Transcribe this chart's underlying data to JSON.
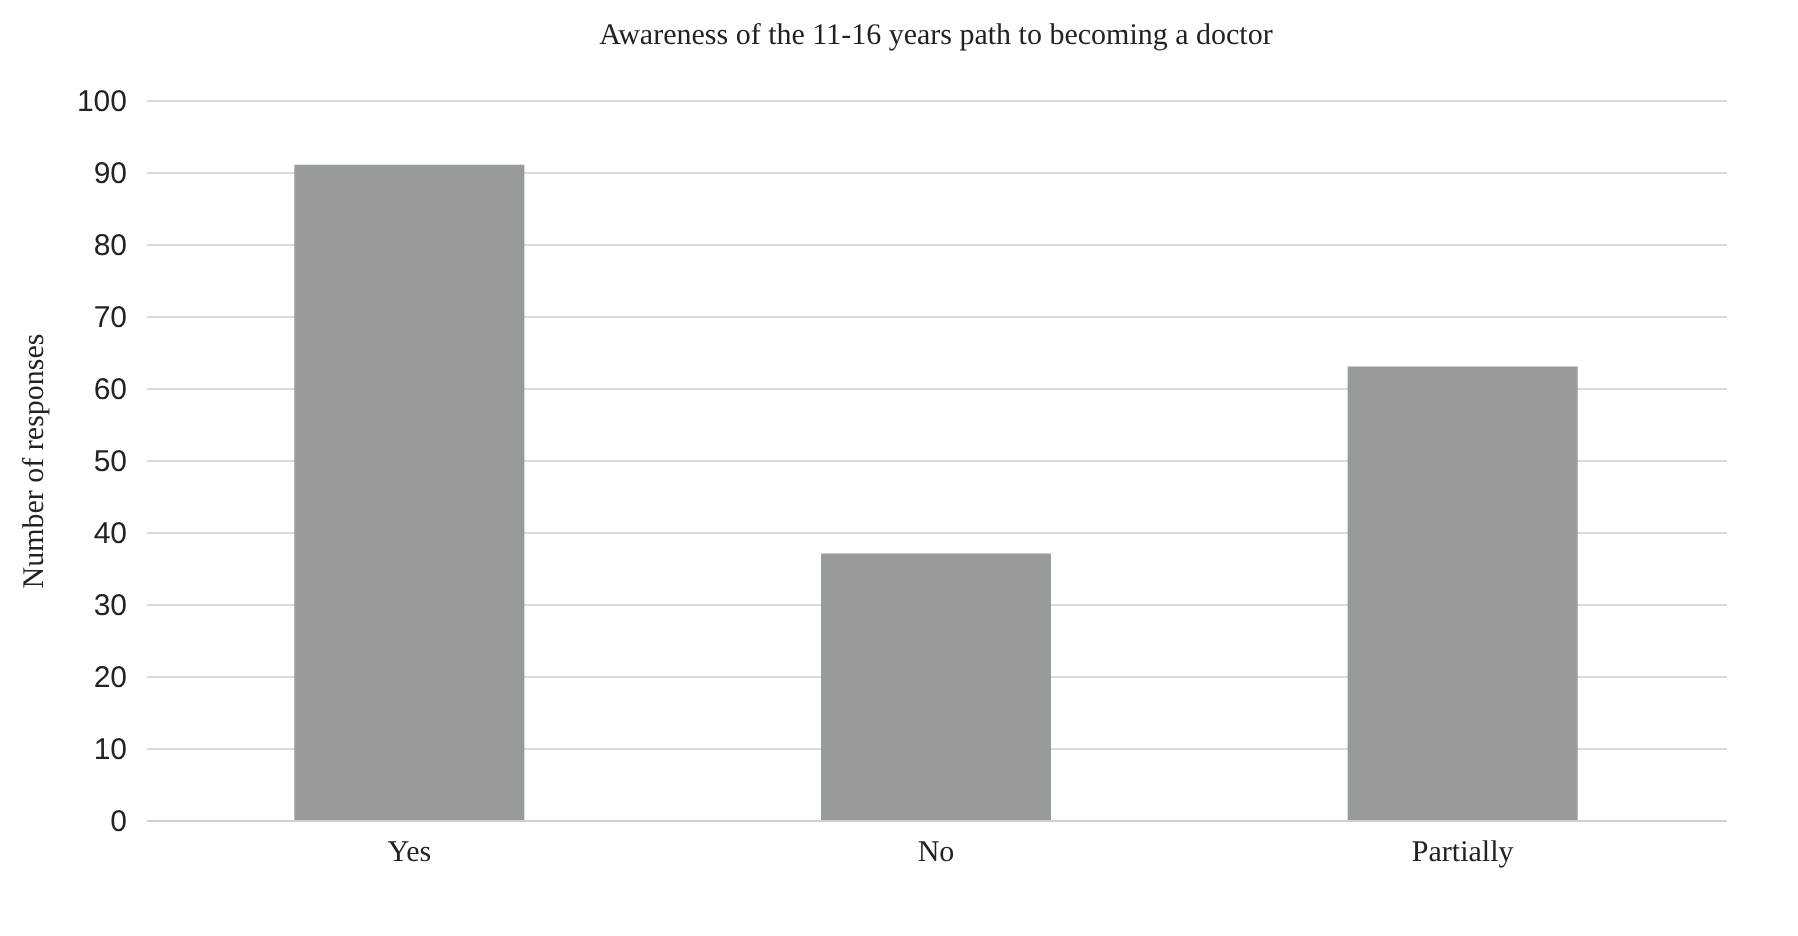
{
  "chart_data": {
    "type": "bar",
    "title": "Awareness of the 11-16  years path  to becoming a doctor",
    "ylabel": "Number of responses",
    "categories": [
      "Yes",
      "No",
      "Partially"
    ],
    "values": [
      91,
      37,
      63
    ],
    "color": "#989b9b",
    "ylim": [
      0,
      100
    ],
    "yticks": [
      0,
      10,
      20,
      30,
      40,
      50,
      60,
      70,
      80,
      90,
      100
    ],
    "grid": "y"
  }
}
